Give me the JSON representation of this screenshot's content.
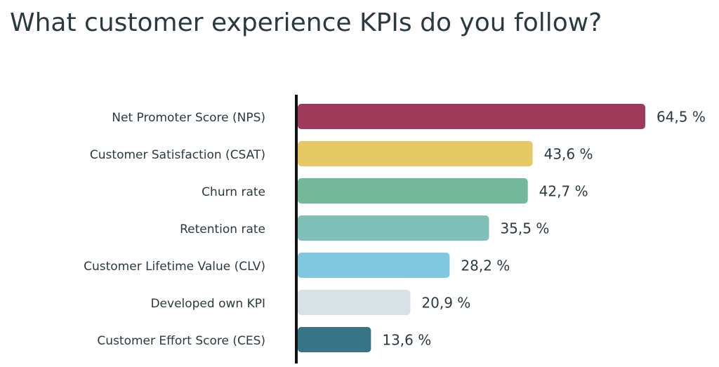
{
  "chart_data": {
    "type": "hbar",
    "title": "What customer experience KPIs do you follow?",
    "categories": [
      "Net Promoter Score (NPS)",
      "Customer Satisfaction (CSAT)",
      "Churn rate",
      "Retention rate",
      "Customer Lifetime Value (CLV)",
      "Developed own KPI",
      "Customer Effort Score (CES)"
    ],
    "values": [
      64.5,
      43.6,
      42.7,
      35.5,
      28.2,
      20.9,
      13.6
    ],
    "value_labels": [
      "64,5 %",
      "43,6 %",
      "42,7 %",
      "35,5 %",
      "28,2 %",
      "20,9 %",
      "13,6 %"
    ],
    "colors": [
      "#9e3a5a",
      "#e5c964",
      "#74b89c",
      "#7fbfb8",
      "#80c8e0",
      "#d7e1e6",
      "#367486"
    ]
  }
}
